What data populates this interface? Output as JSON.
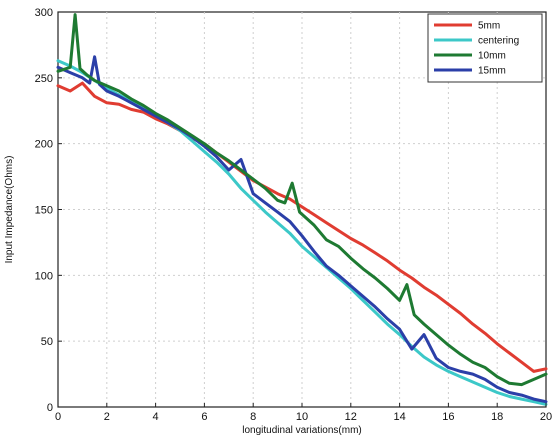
{
  "chart_data": {
    "type": "line",
    "title": "",
    "xlabel": "longitudinal variations(mm)",
    "ylabel": "Input Impedance(Ohms)",
    "xlim": [
      0,
      20
    ],
    "ylim": [
      0,
      300
    ],
    "xticks": [
      "0",
      "2",
      "4",
      "6",
      "8",
      "10",
      "12",
      "14",
      "16",
      "18",
      "20"
    ],
    "yticks": [
      "0",
      "50",
      "100",
      "150",
      "200",
      "250",
      "300"
    ],
    "grid": true,
    "legend_position": "top-right",
    "series": [
      {
        "name": "5mm",
        "color": "#e03c31",
        "x": [
          0,
          0.5,
          1,
          1.5,
          2,
          2.5,
          3,
          3.5,
          4,
          4.5,
          5,
          5.5,
          6,
          6.5,
          7,
          7.5,
          8,
          8.5,
          9,
          9.5,
          10,
          10.5,
          11,
          11.5,
          12,
          12.5,
          13,
          13.5,
          14,
          14.5,
          15,
          15.5,
          16,
          16.5,
          17,
          17.5,
          18,
          18.5,
          19,
          19.5,
          20
        ],
        "y": [
          244,
          240,
          246,
          236,
          231,
          230,
          226,
          224,
          219,
          215,
          210,
          204,
          200,
          193,
          186,
          179,
          172,
          167,
          162,
          158,
          152,
          146,
          140,
          134,
          128,
          123,
          117,
          111,
          104,
          98,
          91,
          85,
          78,
          71,
          63,
          56,
          48,
          41,
          34,
          27,
          29
        ]
      },
      {
        "name": "centering",
        "color": "#3cc8c8",
        "x": [
          0,
          0.5,
          1,
          1.5,
          2,
          2.5,
          3,
          3.5,
          4,
          4.5,
          5,
          5.5,
          6,
          6.5,
          7,
          7.5,
          8,
          8.5,
          9,
          9.5,
          10,
          10.5,
          11,
          11.5,
          12,
          12.5,
          13,
          13.5,
          14,
          14.5,
          15,
          15.5,
          16,
          16.5,
          17,
          17.5,
          18,
          18.5,
          19,
          19.5,
          20
        ],
        "y": [
          263,
          259,
          254,
          248,
          242,
          237,
          232,
          228,
          222,
          216,
          210,
          202,
          194,
          186,
          177,
          166,
          157,
          148,
          140,
          132,
          122,
          114,
          106,
          98,
          90,
          81,
          72,
          63,
          55,
          46,
          38,
          32,
          27,
          23,
          19,
          15,
          11,
          8,
          6,
          4,
          2
        ]
      },
      {
        "name": "10mm",
        "color": "#1e7a32",
        "x": [
          0,
          0.5,
          0.7,
          0.9,
          1.2,
          1.5,
          2,
          2.5,
          3,
          3.5,
          4,
          4.5,
          5,
          5.5,
          6,
          6.5,
          7,
          7.5,
          8,
          8.5,
          9,
          9.3,
          9.6,
          9.9,
          10.5,
          11,
          11.5,
          12,
          12.5,
          13,
          13.5,
          14,
          14.3,
          14.6,
          15,
          15.5,
          16,
          16.5,
          17,
          17.5,
          18,
          18.5,
          19,
          19.5,
          20
        ],
        "y": [
          255,
          258,
          298,
          257,
          252,
          248,
          244,
          240,
          234,
          229,
          223,
          218,
          212,
          206,
          200,
          193,
          187,
          180,
          173,
          166,
          157,
          155,
          170,
          148,
          138,
          127,
          122,
          113,
          105,
          98,
          90,
          81,
          93,
          70,
          63,
          55,
          47,
          40,
          34,
          30,
          23,
          18,
          17,
          21,
          25
        ]
      },
      {
        "name": "15mm",
        "color": "#2b3fa8",
        "x": [
          0,
          0.5,
          1,
          1.3,
          1.5,
          1.7,
          2,
          2.5,
          3,
          3.5,
          4,
          4.5,
          5,
          5.5,
          6,
          6.5,
          7,
          7.5,
          8,
          8.5,
          9,
          9.5,
          10,
          10.5,
          11,
          11.5,
          12,
          12.5,
          13,
          13.5,
          14,
          14.5,
          15,
          15.5,
          16,
          16.5,
          17,
          17.5,
          18,
          18.5,
          19,
          19.5,
          20
        ],
        "y": [
          258,
          254,
          250,
          246,
          266,
          245,
          240,
          236,
          231,
          226,
          221,
          216,
          211,
          205,
          198,
          190,
          180,
          188,
          162,
          155,
          148,
          141,
          130,
          118,
          107,
          100,
          92,
          84,
          76,
          67,
          59,
          44,
          55,
          37,
          30,
          27,
          25,
          21,
          15,
          11,
          9,
          6,
          4
        ]
      }
    ]
  }
}
